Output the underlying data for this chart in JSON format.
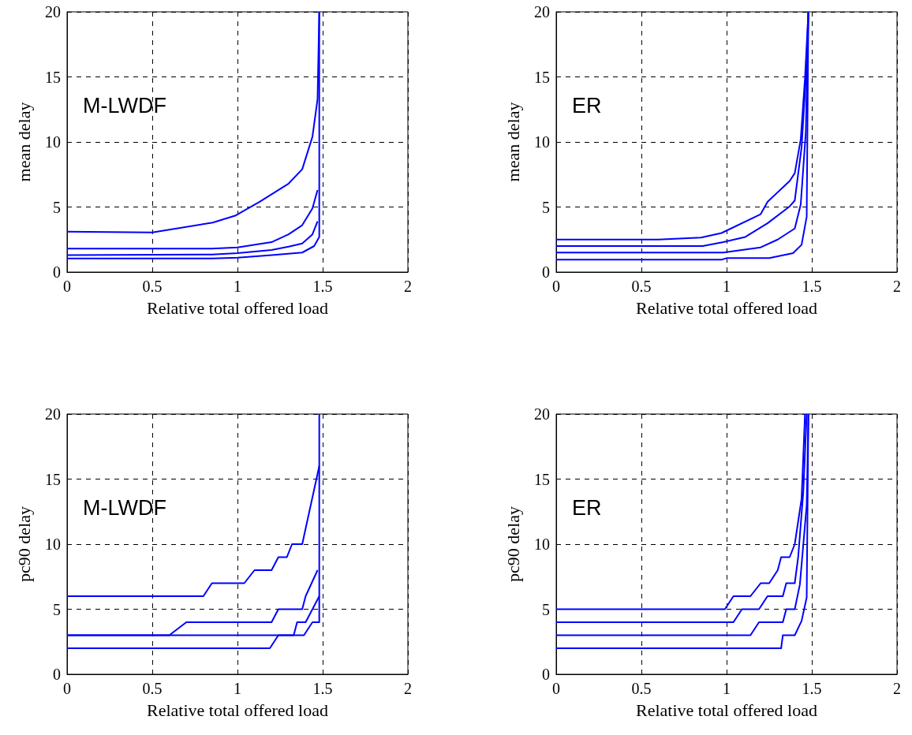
{
  "chart_data": [
    {
      "type": "line",
      "xlabel": "Relative total offered load",
      "ylabel": "mean delay",
      "annotations": [
        "M-LWDF"
      ],
      "xlim": [
        0,
        2
      ],
      "ylim": [
        0,
        20
      ],
      "xticks": [
        0,
        0.5,
        1,
        1.5,
        2
      ],
      "yticks": [
        0,
        5,
        10,
        15,
        20
      ],
      "grid": true,
      "series": [
        {
          "color": "#0000ff",
          "x": [
            0,
            0.5,
            0.855,
            0.99,
            1.13,
            1.3,
            1.38,
            1.44,
            1.47,
            1.48
          ],
          "values": [
            3.1,
            3.05,
            3.8,
            4.35,
            5.4,
            6.8,
            7.9,
            10.4,
            13.3,
            20
          ]
        },
        {
          "color": "#0000ff",
          "x": [
            0,
            0.85,
            1,
            1.2,
            1.3,
            1.38,
            1.44,
            1.47
          ],
          "values": [
            1.8,
            1.8,
            1.9,
            2.3,
            2.9,
            3.6,
            4.9,
            6.3
          ]
        },
        {
          "color": "#0000ff",
          "x": [
            0,
            0.85,
            1,
            1.2,
            1.3,
            1.38,
            1.44,
            1.47
          ],
          "values": [
            1.3,
            1.35,
            1.45,
            1.7,
            1.95,
            2.2,
            2.9,
            3.9
          ]
        },
        {
          "color": "#0000ff",
          "x": [
            0,
            0.85,
            1,
            1.2,
            1.38,
            1.45,
            1.48,
            1.48
          ],
          "values": [
            1.05,
            1.05,
            1.1,
            1.3,
            1.5,
            2,
            2.7,
            20
          ]
        }
      ]
    },
    {
      "type": "line",
      "xlabel": "Relative total offered load",
      "ylabel": "mean delay",
      "annotations": [
        "ER"
      ],
      "xlim": [
        0,
        2
      ],
      "ylim": [
        0,
        20
      ],
      "xticks": [
        0,
        0.5,
        1,
        1.5,
        2
      ],
      "yticks": [
        0,
        5,
        10,
        15,
        20
      ],
      "grid": true,
      "series": [
        {
          "color": "#0000ff",
          "x": [
            0,
            0.6,
            0.85,
            0.97,
            1.2,
            1.24,
            1.37,
            1.4,
            1.435,
            1.46,
            1.48
          ],
          "values": [
            2.5,
            2.5,
            2.65,
            3,
            4.45,
            5.4,
            7,
            7.6,
            10.2,
            14.9,
            20
          ]
        },
        {
          "color": "#0000ff",
          "x": [
            0,
            0.86,
            0.98,
            1.11,
            1.24,
            1.37,
            1.4,
            1.44,
            1.465,
            1.48
          ],
          "values": [
            2,
            2,
            2.3,
            2.7,
            3.75,
            5.05,
            5.5,
            9.6,
            14.9,
            20
          ]
        },
        {
          "color": "#0000ff",
          "x": [
            0,
            0.98,
            1.2,
            1.3,
            1.4,
            1.435,
            1.465,
            1.48
          ],
          "values": [
            1.5,
            1.5,
            1.9,
            2.5,
            3.35,
            5.2,
            10.8,
            20
          ]
        },
        {
          "color": "#0000ff",
          "x": [
            0,
            0.97,
            1,
            1.25,
            1.39,
            1.44,
            1.47,
            1.48
          ],
          "values": [
            0.95,
            0.95,
            1.07,
            1.07,
            1.46,
            2.1,
            4.25,
            20
          ]
        }
      ]
    },
    {
      "type": "line",
      "xlabel": "Relative total offered load",
      "ylabel": "pc90 delay",
      "annotations": [
        "M-LWDF"
      ],
      "xlim": [
        0,
        2
      ],
      "ylim": [
        0,
        20
      ],
      "xticks": [
        0,
        0.5,
        1,
        1.5,
        2
      ],
      "yticks": [
        0,
        5,
        10,
        15,
        20
      ],
      "grid": true,
      "series": [
        {
          "color": "#0000ff",
          "x": [
            0,
            0.8,
            0.85,
            1.04,
            1.1,
            1.2,
            1.24,
            1.29,
            1.32,
            1.38,
            1.48
          ],
          "values": [
            6,
            6,
            7,
            7,
            8,
            8,
            9,
            9,
            10,
            10,
            16
          ]
        },
        {
          "color": "#0000ff",
          "x": [
            0,
            0.6,
            0.7,
            1.2,
            1.24,
            1.38,
            1.4,
            1.47
          ],
          "values": [
            3,
            3,
            4,
            4,
            5,
            5,
            6,
            8
          ]
        },
        {
          "color": "#0000ff",
          "x": [
            0,
            1.33,
            1.35,
            1.4,
            1.48
          ],
          "values": [
            3,
            3,
            4,
            4,
            6
          ]
        },
        {
          "color": "#0000ff",
          "x": [
            0,
            1.19,
            1.24,
            1.39,
            1.44,
            1.48,
            1.48
          ],
          "values": [
            2,
            2,
            3,
            3,
            4,
            4,
            20
          ]
        }
      ]
    },
    {
      "type": "line",
      "xlabel": "Relative total offered load",
      "ylabel": "pc90 delay",
      "annotations": [
        "ER"
      ],
      "xlim": [
        0,
        2
      ],
      "ylim": [
        0,
        20
      ],
      "xticks": [
        0,
        0.5,
        1,
        1.5,
        2
      ],
      "yticks": [
        0,
        5,
        10,
        15,
        20
      ],
      "grid": true,
      "series": [
        {
          "color": "#0000ff",
          "x": [
            0,
            0.99,
            1.04,
            1.14,
            1.2,
            1.25,
            1.3,
            1.32,
            1.37,
            1.4,
            1.44,
            1.46
          ],
          "values": [
            5,
            5,
            6,
            6,
            7,
            7,
            8,
            9,
            9,
            10,
            13.5,
            20
          ]
        },
        {
          "color": "#0000ff",
          "x": [
            0,
            1.04,
            1.09,
            1.19,
            1.24,
            1.33,
            1.35,
            1.4,
            1.42,
            1.45,
            1.47
          ],
          "values": [
            4,
            4,
            5,
            5,
            6,
            6,
            7,
            7,
            9,
            14,
            20
          ]
        },
        {
          "color": "#0000ff",
          "x": [
            0,
            1.14,
            1.19,
            1.33,
            1.35,
            1.4,
            1.43,
            1.47,
            1.48
          ],
          "values": [
            3,
            3,
            4,
            4,
            5,
            5,
            6.9,
            13,
            20
          ]
        },
        {
          "color": "#0000ff",
          "x": [
            0,
            1.32,
            1.33,
            1.4,
            1.44,
            1.47,
            1.48
          ],
          "values": [
            2,
            2,
            3,
            3,
            4.1,
            5.9,
            20
          ]
        }
      ]
    }
  ]
}
